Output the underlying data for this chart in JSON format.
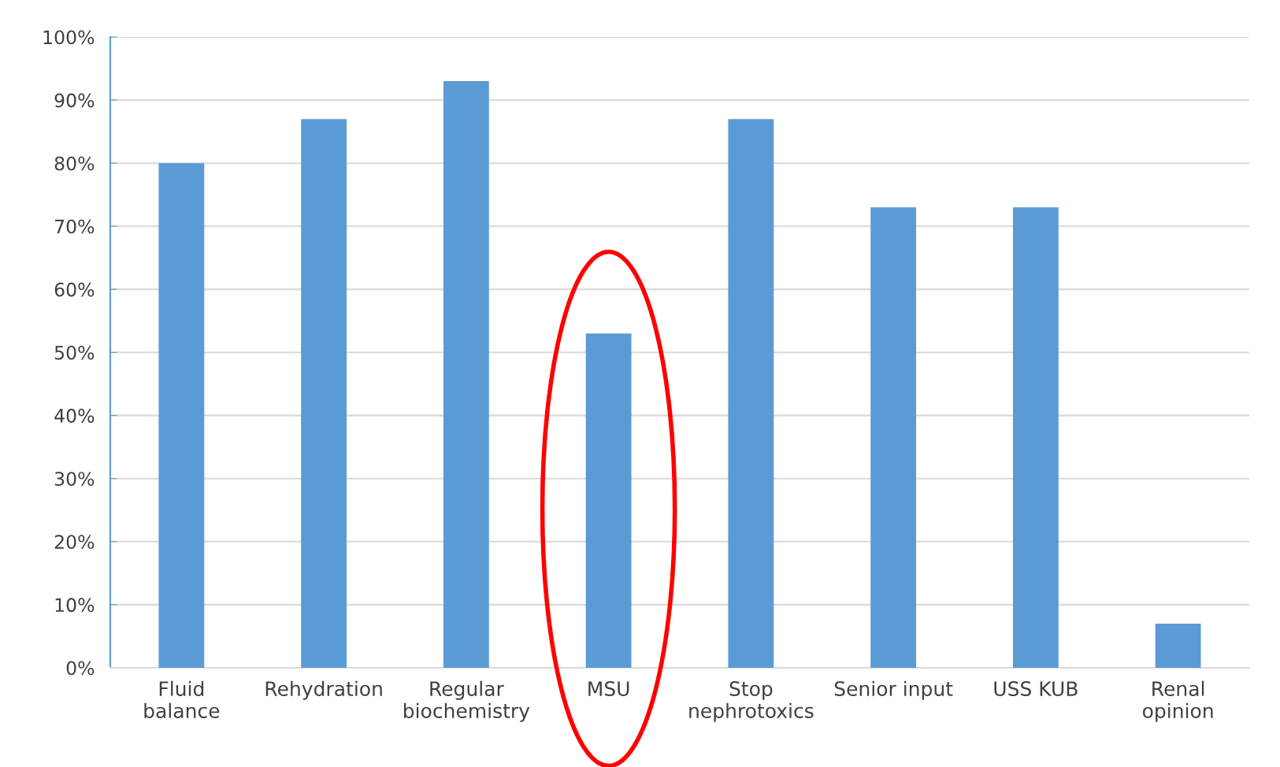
{
  "chart_data": {
    "type": "bar",
    "categories": [
      "Fluid\nbalance",
      "Rehydration",
      "Regular\nbiochemistry",
      "MSU",
      "Stop\nnephrotoxics",
      "Senior input",
      "USS KUB",
      "Renal\nopinion"
    ],
    "values": [
      80,
      87,
      93,
      53,
      87,
      73,
      73,
      7
    ],
    "color": "#5b9bd5",
    "ylim": [
      0,
      100
    ],
    "yticks": [
      {
        "value": 0,
        "label": "0%"
      },
      {
        "value": 10,
        "label": "10%"
      },
      {
        "value": 20,
        "label": "20%"
      },
      {
        "value": 30,
        "label": "30%"
      },
      {
        "value": 40,
        "label": "40%"
      },
      {
        "value": 50,
        "label": "50%"
      },
      {
        "value": 60,
        "label": "60%"
      },
      {
        "value": 70,
        "label": "70%"
      },
      {
        "value": 80,
        "label": "80%"
      },
      {
        "value": 90,
        "label": "90%"
      },
      {
        "value": 100,
        "label": "100%"
      }
    ],
    "grid": "y",
    "legend": false
  }
}
